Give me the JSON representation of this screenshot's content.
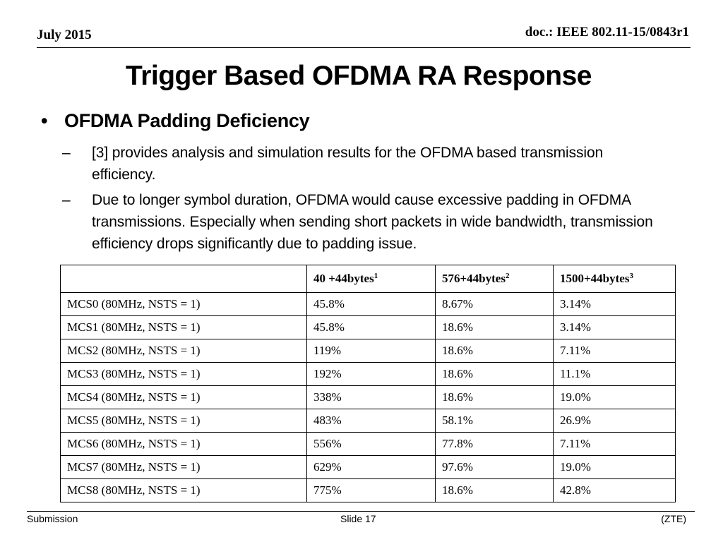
{
  "header": {
    "date": "July 2015",
    "doc_id": "doc.: IEEE 802.11-15/0843r1"
  },
  "title": "Trigger Based OFDMA RA Response",
  "bullet": {
    "marker": "•",
    "text": "OFDMA Padding Deficiency"
  },
  "sub_bullets": [
    {
      "marker": "–",
      "text": "[3] provides analysis and simulation results for the OFDMA based transmission efficiency."
    },
    {
      "marker": "–",
      "text": "Due to longer symbol duration,  OFDMA would cause excessive padding in OFDMA transmissions.  Especially when sending short packets in wide bandwidth, transmission efficiency drops significantly due to padding issue."
    }
  ],
  "table": {
    "headers": [
      {
        "text": "",
        "sup": ""
      },
      {
        "text": "40 +44bytes",
        "sup": "1"
      },
      {
        "text": "576+44bytes",
        "sup": "2"
      },
      {
        "text": "1500+44bytes",
        "sup": "3"
      }
    ],
    "rows": [
      [
        "MCS0 (80MHz, NSTS = 1)",
        "45.8%",
        "8.67%",
        "3.14%"
      ],
      [
        "MCS1 (80MHz, NSTS = 1)",
        "45.8%",
        "18.6%",
        "3.14%"
      ],
      [
        "MCS2 (80MHz, NSTS = 1)",
        "119%",
        "18.6%",
        "7.11%"
      ],
      [
        "MCS3 (80MHz, NSTS = 1)",
        "192%",
        "18.6%",
        "11.1%"
      ],
      [
        "MCS4 (80MHz, NSTS = 1)",
        "338%",
        "18.6%",
        "19.0%"
      ],
      [
        "MCS5 (80MHz, NSTS = 1)",
        "483%",
        "58.1%",
        "26.9%"
      ],
      [
        "MCS6 (80MHz, NSTS = 1)",
        "556%",
        "77.8%",
        "7.11%"
      ],
      [
        "MCS7 (80MHz, NSTS = 1)",
        "629%",
        "97.6%",
        "19.0%"
      ],
      [
        "MCS8 (80MHz, NSTS = 1)",
        "775%",
        "18.6%",
        "42.8%"
      ]
    ]
  },
  "footer": {
    "left": "Submission",
    "center": "Slide 17",
    "right": "(ZTE)"
  }
}
